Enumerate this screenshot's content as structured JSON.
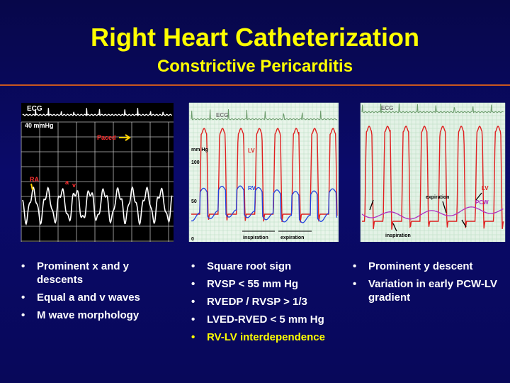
{
  "header": {
    "title": "Right Heart Catheterization",
    "subtitle": "Constrictive Pericarditis"
  },
  "panels": [
    {
      "labels": [
        "ECG",
        "40 mmHg",
        "Paced",
        "RA",
        "a",
        "v"
      ]
    },
    {
      "labels": [
        "ECG",
        "mm Hg",
        "100",
        "50",
        "0",
        "LV",
        "RV",
        "inspiration",
        "expiration"
      ]
    },
    {
      "labels": [
        "ECG",
        "LV",
        "PCW",
        "expiration",
        "inspiration"
      ]
    }
  ],
  "bullets": [
    [
      "Prominent x and y descents",
      "Equal a and v waves",
      "M wave morphology"
    ],
    [
      "Square root sign",
      "RVSP < 55 mm Hg",
      "RVEDP / RVSP > 1/3",
      "LVED-RVED < 5 mm Hg",
      "RV-LV interdependence"
    ],
    [
      "Prominent y descent",
      "Variation in early PCW-LV gradient"
    ]
  ]
}
